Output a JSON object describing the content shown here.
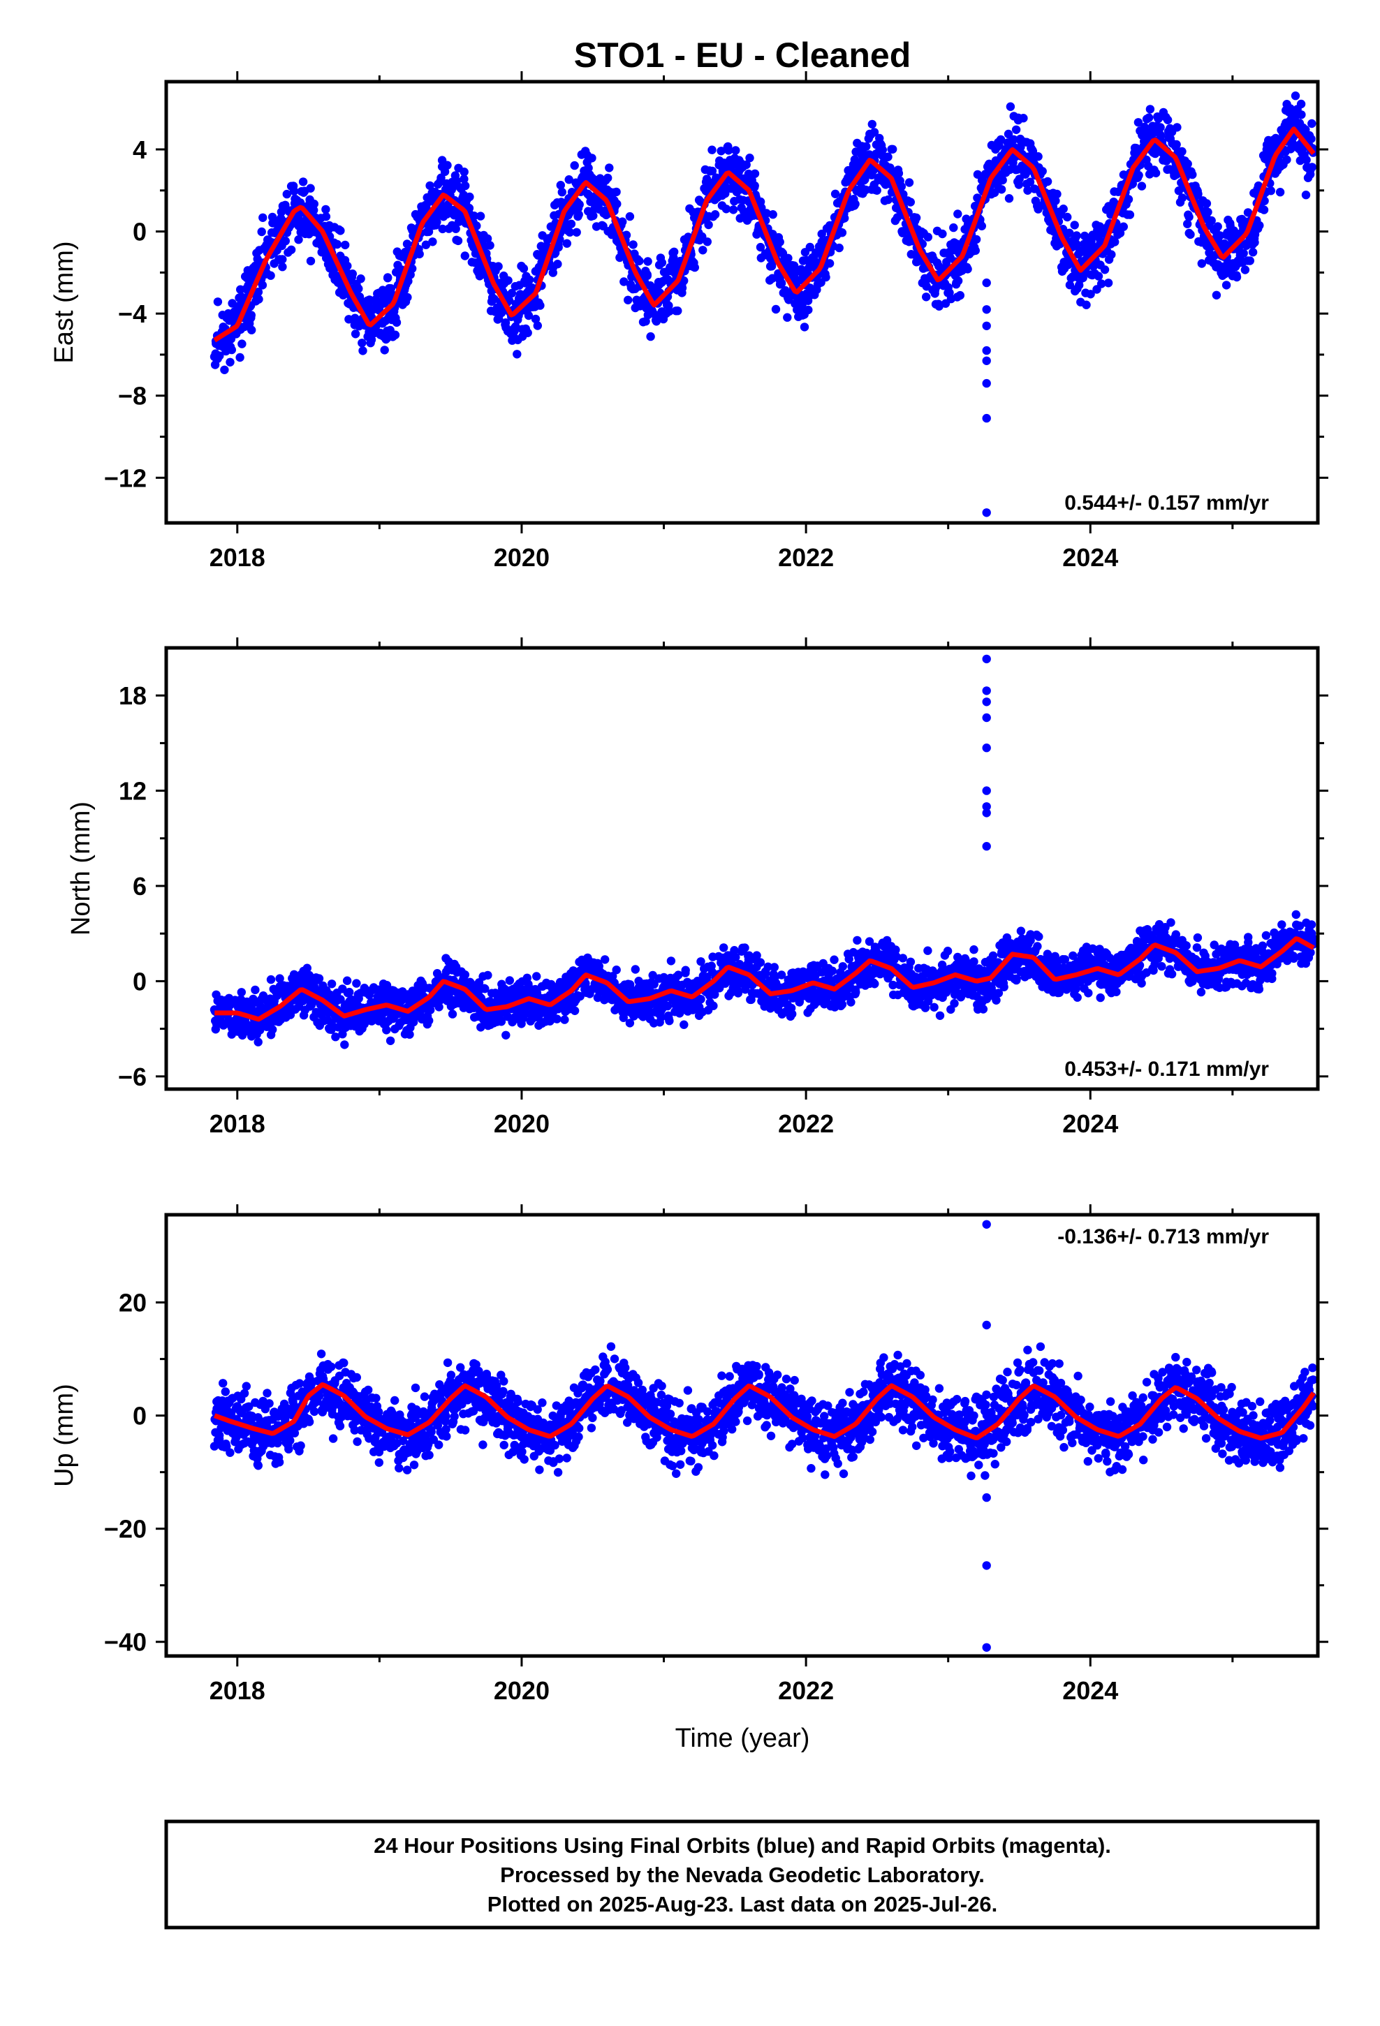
{
  "title": "STO1  - EU - Cleaned",
  "footer": {
    "lines": [
      "24 Hour Positions Using Final Orbits (blue) and Rapid Orbits (magenta).",
      "Processed by the Nevada Geodetic Laboratory.",
      "Plotted on 2025-Aug-23. Last data on 2025-Jul-26."
    ]
  },
  "colors": {
    "points": "#0000ff",
    "model": "#ff0000",
    "axes": "#000000"
  },
  "chart_data": [
    {
      "type": "scatter",
      "name": "east",
      "ylabel": "East (mm)",
      "xlabel": "",
      "xlim": [
        2017.5,
        2025.6
      ],
      "ylim": [
        -14.2,
        7.3
      ],
      "xticks": [
        2018,
        2020,
        2022,
        2024
      ],
      "xtick_labels": [
        "2018",
        "2020",
        "2022",
        "2024"
      ],
      "yticks": [
        -12,
        -8,
        -4,
        0,
        4
      ],
      "ytick_labels": [
        "−12",
        "−8",
        "−4",
        "0",
        "4"
      ],
      "rate_label": "0.544+/- 0.157 mm/yr",
      "rate_position": "bottom-right",
      "series": [
        {
          "kind": "model-curve",
          "x": [
            2017.84,
            2018.0,
            2018.2,
            2018.4,
            2018.45,
            2018.6,
            2018.8,
            2018.93,
            2019.1,
            2019.3,
            2019.45,
            2019.6,
            2019.8,
            2019.93,
            2020.1,
            2020.3,
            2020.45,
            2020.6,
            2020.8,
            2020.93,
            2021.1,
            2021.3,
            2021.45,
            2021.6,
            2021.8,
            2021.93,
            2022.1,
            2022.3,
            2022.45,
            2022.6,
            2022.8,
            2022.93,
            2023.1,
            2023.3,
            2023.45,
            2023.6,
            2023.8,
            2023.93,
            2024.1,
            2024.3,
            2024.45,
            2024.6,
            2024.8,
            2024.93,
            2025.1,
            2025.3,
            2025.43,
            2025.57
          ],
          "y": [
            -5.3,
            -4.6,
            -1.4,
            1.0,
            1.2,
            0.0,
            -3.0,
            -4.6,
            -3.5,
            0.4,
            1.8,
            1.0,
            -2.5,
            -4.1,
            -3.0,
            1.0,
            2.4,
            1.5,
            -2.0,
            -3.6,
            -2.4,
            1.5,
            2.9,
            2.0,
            -1.5,
            -3.0,
            -1.8,
            2.0,
            3.5,
            2.6,
            -0.9,
            -2.4,
            -1.2,
            2.6,
            4.0,
            3.1,
            -0.3,
            -1.9,
            -0.7,
            3.1,
            4.5,
            3.6,
            0.2,
            -1.3,
            -0.1,
            3.7,
            5.0,
            3.8
          ]
        },
        {
          "kind": "spikes",
          "x": [
            2023.27,
            2023.27,
            2023.27,
            2023.27,
            2023.27,
            2023.27,
            2023.27,
            2023.27
          ],
          "y": [
            -2.5,
            -3.8,
            -4.6,
            -5.8,
            -6.3,
            -7.4,
            -9.1,
            -13.7
          ]
        }
      ]
    },
    {
      "type": "scatter",
      "name": "north",
      "ylabel": "North (mm)",
      "xlabel": "",
      "xlim": [
        2017.5,
        2025.6
      ],
      "ylim": [
        -6.8,
        21.0
      ],
      "xticks": [
        2018,
        2020,
        2022,
        2024
      ],
      "xtick_labels": [
        "2018",
        "2020",
        "2022",
        "2024"
      ],
      "yticks": [
        -6,
        0,
        6,
        12,
        18
      ],
      "ytick_labels": [
        "−6",
        "0",
        "6",
        "12",
        "18"
      ],
      "rate_label": "0.453+/- 0.171 mm/yr",
      "rate_position": "bottom-right",
      "series": [
        {
          "kind": "model-curve",
          "x": [
            2017.84,
            2018.0,
            2018.15,
            2018.3,
            2018.45,
            2018.6,
            2018.75,
            2018.9,
            2019.05,
            2019.2,
            2019.35,
            2019.45,
            2019.6,
            2019.75,
            2019.9,
            2020.05,
            2020.2,
            2020.35,
            2020.45,
            2020.6,
            2020.75,
            2020.9,
            2021.05,
            2021.2,
            2021.35,
            2021.45,
            2021.6,
            2021.75,
            2021.9,
            2022.05,
            2022.2,
            2022.35,
            2022.45,
            2022.6,
            2022.75,
            2022.9,
            2023.05,
            2023.2,
            2023.3,
            2023.45,
            2023.6,
            2023.75,
            2023.9,
            2024.05,
            2024.2,
            2024.35,
            2024.45,
            2024.6,
            2024.75,
            2024.9,
            2025.05,
            2025.2,
            2025.35,
            2025.45,
            2025.57
          ],
          "y": [
            -2.0,
            -2.0,
            -2.4,
            -1.6,
            -0.5,
            -1.2,
            -2.2,
            -1.8,
            -1.5,
            -1.9,
            -1.0,
            0.0,
            -0.5,
            -1.8,
            -1.6,
            -1.1,
            -1.5,
            -0.6,
            0.4,
            -0.1,
            -1.3,
            -1.1,
            -0.6,
            -1.0,
            0.0,
            0.9,
            0.4,
            -0.8,
            -0.6,
            -0.1,
            -0.5,
            0.5,
            1.3,
            0.8,
            -0.4,
            -0.1,
            0.4,
            0.0,
            0.2,
            1.7,
            1.5,
            0.1,
            0.4,
            0.8,
            0.4,
            1.4,
            2.3,
            1.8,
            0.6,
            0.8,
            1.3,
            0.9,
            1.9,
            2.7,
            2.1
          ]
        },
        {
          "kind": "spikes",
          "x": [
            2023.27,
            2023.27,
            2023.27,
            2023.27,
            2023.27,
            2023.27,
            2023.27,
            2023.27,
            2023.27
          ],
          "y": [
            20.3,
            18.3,
            17.6,
            16.6,
            14.7,
            12.0,
            11.0,
            10.6,
            8.5
          ]
        }
      ]
    },
    {
      "type": "scatter",
      "name": "up",
      "ylabel": "Up (mm)",
      "xlabel": "Time (year)",
      "xlim": [
        2017.5,
        2025.6
      ],
      "ylim": [
        -42.5,
        35.5
      ],
      "xticks": [
        2018,
        2020,
        2022,
        2024
      ],
      "xtick_labels": [
        "2018",
        "2020",
        "2022",
        "2024"
      ],
      "yticks": [
        -40,
        -20,
        0,
        20
      ],
      "ytick_labels": [
        "−40",
        "−20",
        "0",
        "20"
      ],
      "rate_label": "-0.136+/- 0.713 mm/yr",
      "rate_position": "top-right",
      "series": [
        {
          "kind": "model-curve",
          "x": [
            2017.84,
            2017.95,
            2018.1,
            2018.25,
            2018.4,
            2018.5,
            2018.6,
            2018.75,
            2018.9,
            2019.05,
            2019.2,
            2019.35,
            2019.5,
            2019.6,
            2019.75,
            2019.9,
            2020.05,
            2020.2,
            2020.35,
            2020.5,
            2020.6,
            2020.75,
            2020.9,
            2021.05,
            2021.2,
            2021.35,
            2021.5,
            2021.6,
            2021.75,
            2021.9,
            2022.05,
            2022.2,
            2022.35,
            2022.5,
            2022.6,
            2022.75,
            2022.9,
            2023.05,
            2023.2,
            2023.35,
            2023.5,
            2023.6,
            2023.75,
            2023.9,
            2024.05,
            2024.2,
            2024.35,
            2024.5,
            2024.6,
            2024.75,
            2024.9,
            2025.05,
            2025.2,
            2025.35,
            2025.5,
            2025.57
          ],
          "y": [
            0.0,
            -1.0,
            -2.2,
            -3.2,
            -1.0,
            3.5,
            5.5,
            3.5,
            -0.2,
            -2.3,
            -3.4,
            -1.2,
            3.0,
            5.3,
            3.3,
            -0.3,
            -2.5,
            -3.7,
            -1.5,
            3.0,
            5.3,
            3.3,
            -0.3,
            -2.5,
            -3.7,
            -1.5,
            3.0,
            5.3,
            3.3,
            -0.3,
            -2.5,
            -3.7,
            -1.5,
            3.0,
            5.3,
            3.3,
            -0.3,
            -2.5,
            -4.0,
            -1.5,
            3.0,
            5.3,
            3.3,
            -0.3,
            -2.5,
            -3.7,
            -1.5,
            3.0,
            5.0,
            3.0,
            -0.5,
            -2.8,
            -4.0,
            -3.0,
            1.5,
            4.0
          ]
        },
        {
          "kind": "spikes",
          "x": [
            2023.27,
            2023.27,
            2023.27,
            2023.27,
            2023.27
          ],
          "y": [
            33.8,
            16.0,
            -14.5,
            -26.5,
            -41.0
          ]
        }
      ]
    }
  ]
}
